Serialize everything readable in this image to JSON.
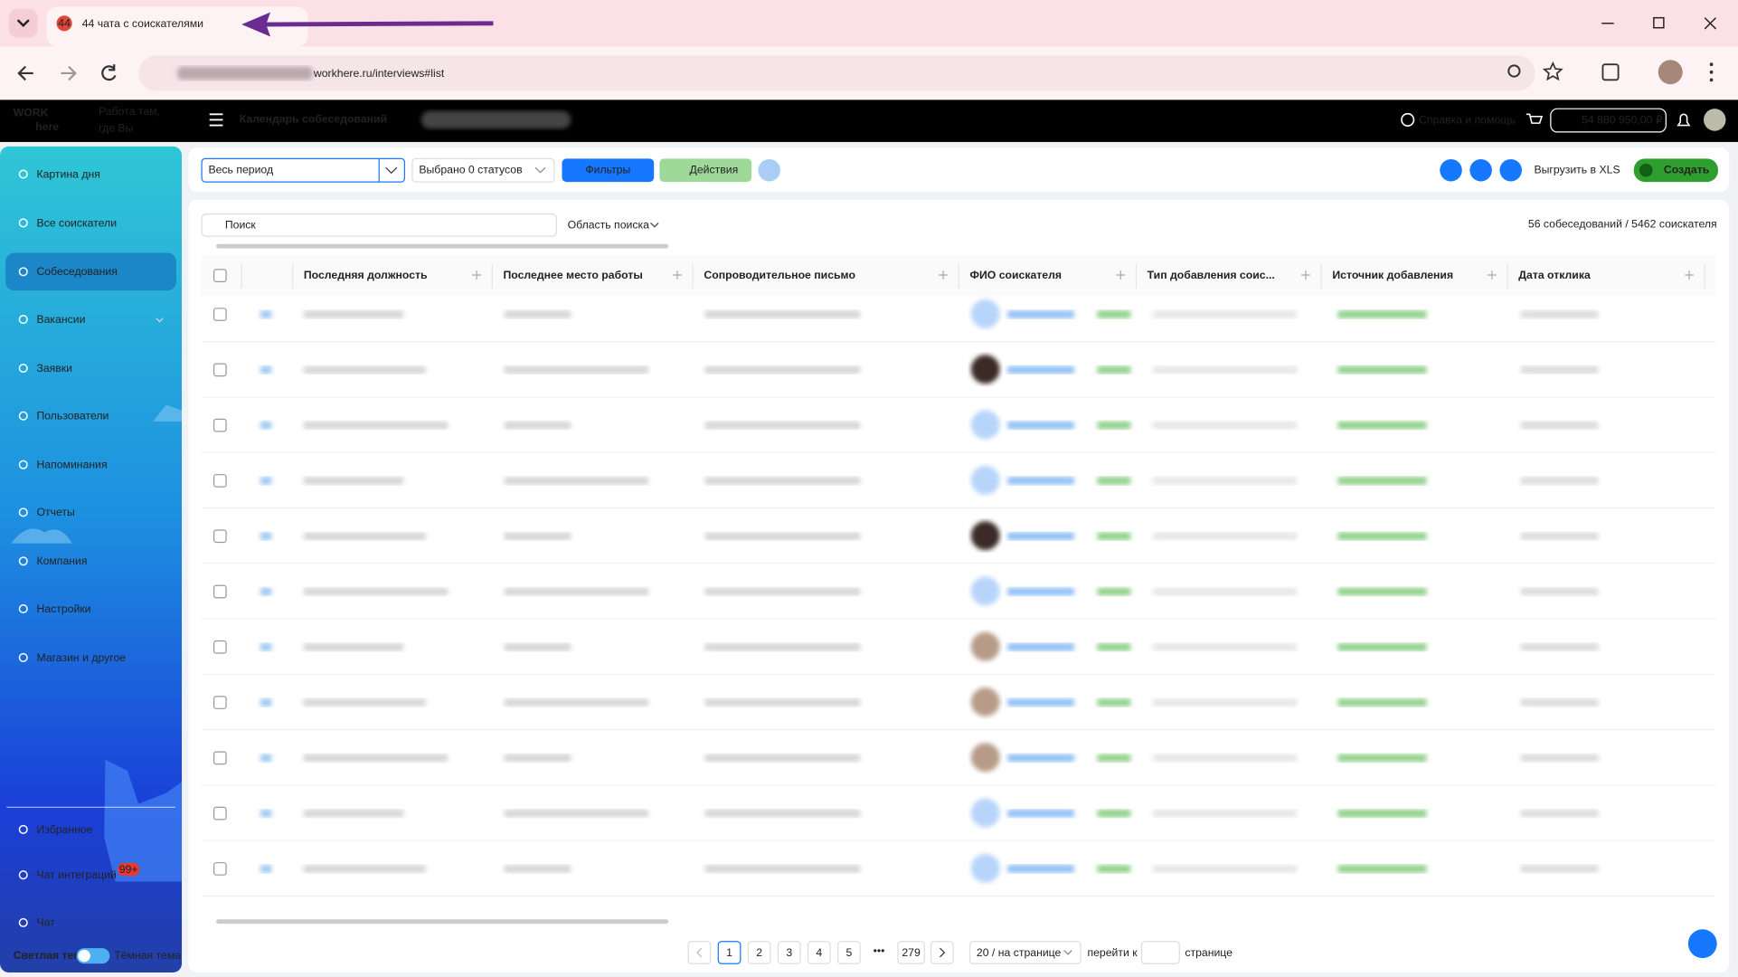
{
  "browser": {
    "tab_badge": "44",
    "tab_title": "44 чата с соискателями",
    "url": "workhere.ru/interviews#list"
  },
  "header": {
    "logo_top": "WORK",
    "logo_bottom": "here",
    "tagline_1": "Работа там,",
    "tagline_2": "где Вы",
    "title": "Календарь собеседований",
    "help": "Справка и помощь",
    "balance": "54 880 950,00 ₽"
  },
  "sidebar": {
    "items": [
      "Картина дня",
      "Все соискатели",
      "Собеседования",
      "Вакансии",
      "Заявки",
      "Пользователи",
      "Напоминания",
      "Отчеты",
      "Компания",
      "Настройки",
      "Магазин и другое"
    ],
    "bottom": [
      "Избранное",
      "Чат интеграций",
      "Чат"
    ],
    "badge": "99+",
    "theme_light": "Светлая тема",
    "theme_dark": "Тёмная тема"
  },
  "toolbar": {
    "period": "Весь период",
    "statuses": "Выбрано 0 статусов",
    "filters": "Фильтры",
    "actions": "Действия",
    "export": "Выгрузить в XLS",
    "create": "Создать"
  },
  "search": {
    "placeholder": "Поиск",
    "scope": "Область поиска",
    "summary": "56 собеседований / 5462 соискателя"
  },
  "table": {
    "columns": [
      "Последняя должность",
      "Последнее место работы",
      "Сопроводительное письмо",
      "ФИО соискателя",
      "Тип добавления соис...",
      "Источник добавления",
      "Дата отклика"
    ]
  },
  "pagination": {
    "pages": [
      "1",
      "2",
      "3",
      "4",
      "5",
      "279"
    ],
    "ellipsis": "•••",
    "per_page": "20 / на странице",
    "goto": "перейти к",
    "page_word": "странице"
  }
}
